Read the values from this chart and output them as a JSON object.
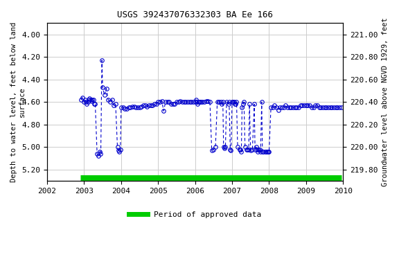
{
  "title": "USGS 392437076332303 BA Ee 166",
  "ylabel_left": "Depth to water level, feet below land\nsurface",
  "ylabel_right": "Groundwater level above NGVD 1929, feet",
  "xlim": [
    2002,
    2010
  ],
  "ylim_left": [
    5.3,
    3.9
  ],
  "ylim_right": [
    219.7,
    221.1
  ],
  "xticks": [
    2002,
    2003,
    2004,
    2005,
    2006,
    2007,
    2008,
    2009,
    2010
  ],
  "yticks_left": [
    4.0,
    4.2,
    4.4,
    4.6,
    4.8,
    5.0,
    5.2
  ],
  "yticks_right": [
    221.0,
    220.8,
    220.6,
    220.4,
    220.2,
    220.0,
    219.8
  ],
  "legend_label": "Period of approved data",
  "legend_color": "#00cc00",
  "line_color": "#0000cc",
  "marker_color": "#0000cc",
  "background_color": "#ffffff",
  "grid_color": "#cccccc",
  "approved_bar_y": 5.28,
  "approved_bar_xstart": 2002.9,
  "approved_bar_xend": 2009.95,
  "data_x": [
    2002.92,
    2002.95,
    2003.0,
    2003.02,
    2003.05,
    2003.07,
    2003.1,
    2003.12,
    2003.15,
    2003.17,
    2003.2,
    2003.22,
    2003.25,
    2003.27,
    2003.3,
    2003.35,
    2003.38,
    2003.42,
    2003.45,
    2003.48,
    2003.5,
    2003.55,
    2003.6,
    2003.65,
    2003.7,
    2003.75,
    2003.8,
    2003.85,
    2003.9,
    2003.92,
    2003.95,
    2003.98,
    2004.0,
    2004.05,
    2004.1,
    2004.15,
    2004.2,
    2004.25,
    2004.3,
    2004.35,
    2004.4,
    2004.45,
    2004.5,
    2004.55,
    2004.6,
    2004.65,
    2004.7,
    2004.75,
    2004.8,
    2004.85,
    2004.9,
    2004.95,
    2005.0,
    2005.05,
    2005.1,
    2005.15,
    2005.2,
    2005.25,
    2005.3,
    2005.35,
    2005.4,
    2005.45,
    2005.5,
    2005.55,
    2005.6,
    2005.65,
    2005.7,
    2005.75,
    2005.8,
    2005.85,
    2005.9,
    2005.95,
    2006.0,
    2006.02,
    2006.05,
    2006.07,
    2006.1,
    2006.12,
    2006.15,
    2006.2,
    2006.25,
    2006.3,
    2006.35,
    2006.4,
    2006.45,
    2006.5,
    2006.55,
    2006.6,
    2006.65,
    2006.7,
    2006.72,
    2006.75,
    2006.77,
    2006.8,
    2006.82,
    2006.85,
    2006.9,
    2006.92,
    2006.95,
    2006.97,
    2007.0,
    2007.02,
    2007.05,
    2007.07,
    2007.1,
    2007.12,
    2007.15,
    2007.2,
    2007.22,
    2007.25,
    2007.27,
    2007.3,
    2007.32,
    2007.35,
    2007.4,
    2007.42,
    2007.45,
    2007.47,
    2007.5,
    2007.55,
    2007.6,
    2007.62,
    2007.65,
    2007.67,
    2007.7,
    2007.72,
    2007.75,
    2007.77,
    2007.8,
    2007.82,
    2007.85,
    2007.9,
    2007.92,
    2007.95,
    2007.97,
    2008.0,
    2008.05,
    2008.1,
    2008.15,
    2008.2,
    2008.25,
    2008.3,
    2008.35,
    2008.4,
    2008.45,
    2008.5,
    2008.55,
    2008.6,
    2008.65,
    2008.7,
    2008.75,
    2008.8,
    2008.85,
    2008.9,
    2008.95,
    2009.0,
    2009.05,
    2009.1,
    2009.15,
    2009.2,
    2009.25,
    2009.3,
    2009.35,
    2009.4,
    2009.45,
    2009.5,
    2009.55,
    2009.6,
    2009.65,
    2009.7,
    2009.75,
    2009.8,
    2009.85,
    2009.9,
    2009.95
  ],
  "data_y": [
    4.58,
    4.56,
    4.6,
    4.58,
    4.6,
    4.62,
    4.6,
    4.58,
    4.57,
    4.58,
    4.59,
    4.58,
    4.58,
    4.62,
    4.62,
    5.06,
    5.08,
    5.04,
    5.06,
    4.23,
    4.47,
    4.54,
    4.48,
    4.58,
    4.6,
    4.58,
    4.63,
    4.62,
    5.0,
    5.03,
    5.04,
    5.02,
    4.65,
    4.65,
    4.66,
    4.66,
    4.65,
    4.65,
    4.64,
    4.64,
    4.65,
    4.65,
    4.65,
    4.64,
    4.63,
    4.63,
    4.64,
    4.63,
    4.63,
    4.63,
    4.62,
    4.62,
    4.6,
    4.6,
    4.59,
    4.68,
    4.6,
    4.6,
    4.6,
    4.62,
    4.62,
    4.62,
    4.6,
    4.6,
    4.59,
    4.6,
    4.6,
    4.6,
    4.6,
    4.6,
    4.6,
    4.6,
    4.6,
    4.58,
    4.6,
    4.62,
    4.6,
    4.6,
    4.6,
    4.6,
    4.6,
    4.59,
    4.59,
    4.6,
    5.03,
    5.02,
    5.0,
    4.6,
    4.6,
    4.6,
    4.62,
    4.6,
    5.0,
    5.01,
    5.0,
    4.6,
    4.62,
    4.6,
    5.02,
    5.03,
    4.6,
    4.6,
    4.6,
    4.62,
    4.62,
    4.6,
    5.0,
    5.02,
    5.02,
    5.04,
    4.65,
    4.62,
    4.6,
    5.0,
    5.02,
    5.02,
    5.02,
    4.62,
    5.03,
    5.02,
    4.62,
    5.02,
    5.0,
    5.02,
    5.04,
    5.02,
    5.02,
    5.04,
    4.6,
    5.04,
    5.04,
    5.04,
    5.04,
    5.04,
    5.04,
    5.04,
    4.65,
    4.65,
    4.63,
    4.65,
    4.67,
    4.65,
    4.65,
    4.65,
    4.63,
    4.65,
    4.65,
    4.65,
    4.65,
    4.65,
    4.65,
    4.65,
    4.63,
    4.63,
    4.63,
    4.63,
    4.63,
    4.63,
    4.65,
    4.65,
    4.63,
    4.63,
    4.65,
    4.65,
    4.65,
    4.65,
    4.65,
    4.65,
    4.65,
    4.65,
    4.65,
    4.65,
    4.65,
    4.65,
    4.65
  ]
}
